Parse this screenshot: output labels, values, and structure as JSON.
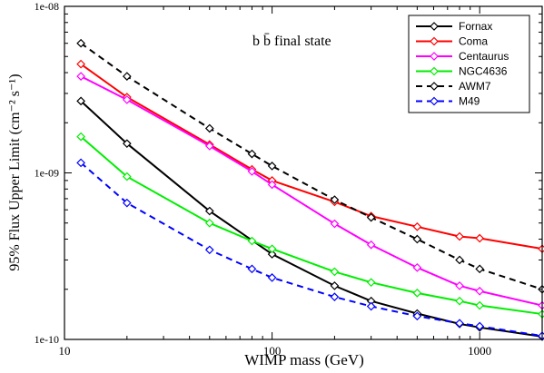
{
  "chart_data": {
    "type": "line",
    "annotation": "b b̄ final state",
    "xlabel": "WIMP mass (GeV)",
    "ylabel": "95% Flux Upper Limit (cm⁻² s⁻¹)",
    "x_scale": "log",
    "y_scale": "log",
    "xlim": [
      10,
      2000
    ],
    "ylim": [
      1e-10,
      1e-08
    ],
    "x_ticks": [
      {
        "value": 10,
        "label": "10"
      },
      {
        "value": 100,
        "label": "100"
      },
      {
        "value": 1000,
        "label": "1000"
      }
    ],
    "y_ticks": [
      {
        "value": 1e-10,
        "label": "1e-10"
      },
      {
        "value": 1e-09,
        "label": "1e-09"
      },
      {
        "value": 1e-08,
        "label": "1e-08"
      }
    ],
    "legend_position": "top-right",
    "grid": false,
    "series": [
      {
        "name": "Fornax",
        "color": "#000000",
        "dashed": false,
        "x": [
          12,
          20,
          50,
          100,
          200,
          300,
          500,
          800,
          1000,
          2000
        ],
        "y": [
          2.7e-09,
          1.5e-09,
          5.9e-10,
          3.25e-10,
          2.1e-10,
          1.7e-10,
          1.43e-10,
          1.24e-10,
          1.18e-10,
          1.04e-10
        ]
      },
      {
        "name": "Coma",
        "color": "#ff0000",
        "dashed": false,
        "x": [
          12,
          20,
          50,
          80,
          100,
          200,
          300,
          500,
          800,
          1000,
          2000
        ],
        "y": [
          4.5e-09,
          2.85e-09,
          1.48e-09,
          1.05e-09,
          9e-10,
          6.7e-10,
          5.5e-10,
          4.75e-10,
          4.15e-10,
          4.05e-10,
          3.5e-10
        ]
      },
      {
        "name": "Centaurus",
        "color": "#ff00ff",
        "dashed": false,
        "x": [
          12,
          20,
          50,
          80,
          100,
          200,
          300,
          500,
          800,
          1000,
          2000
        ],
        "y": [
          3.8e-09,
          2.75e-09,
          1.45e-09,
          1.02e-09,
          8.5e-10,
          4.95e-10,
          3.7e-10,
          2.7e-10,
          2.1e-10,
          1.95e-10,
          1.6e-10
        ]
      },
      {
        "name": "NGC4636",
        "color": "#00ee00",
        "dashed": false,
        "x": [
          12,
          20,
          50,
          80,
          100,
          200,
          300,
          500,
          800,
          1000,
          2000
        ],
        "y": [
          1.65e-09,
          9.5e-10,
          5e-10,
          3.9e-10,
          3.5e-10,
          2.55e-10,
          2.2e-10,
          1.9e-10,
          1.7e-10,
          1.6e-10,
          1.42e-10
        ]
      },
      {
        "name": "AWM7",
        "color": "#000000",
        "dashed": true,
        "x": [
          12,
          20,
          50,
          80,
          100,
          200,
          300,
          500,
          800,
          1000,
          2000
        ],
        "y": [
          6e-09,
          3.8e-09,
          1.85e-09,
          1.3e-09,
          1.1e-09,
          6.9e-10,
          5.4e-10,
          4e-10,
          3e-10,
          2.65e-10,
          2e-10
        ]
      },
      {
        "name": "M49",
        "color": "#0000ff",
        "dashed": true,
        "x": [
          12,
          20,
          50,
          80,
          100,
          200,
          300,
          500,
          800,
          1000,
          2000
        ],
        "y": [
          1.15e-09,
          6.6e-10,
          3.45e-10,
          2.65e-10,
          2.35e-10,
          1.8e-10,
          1.58e-10,
          1.38e-10,
          1.25e-10,
          1.2e-10,
          1.05e-10
        ]
      }
    ]
  }
}
